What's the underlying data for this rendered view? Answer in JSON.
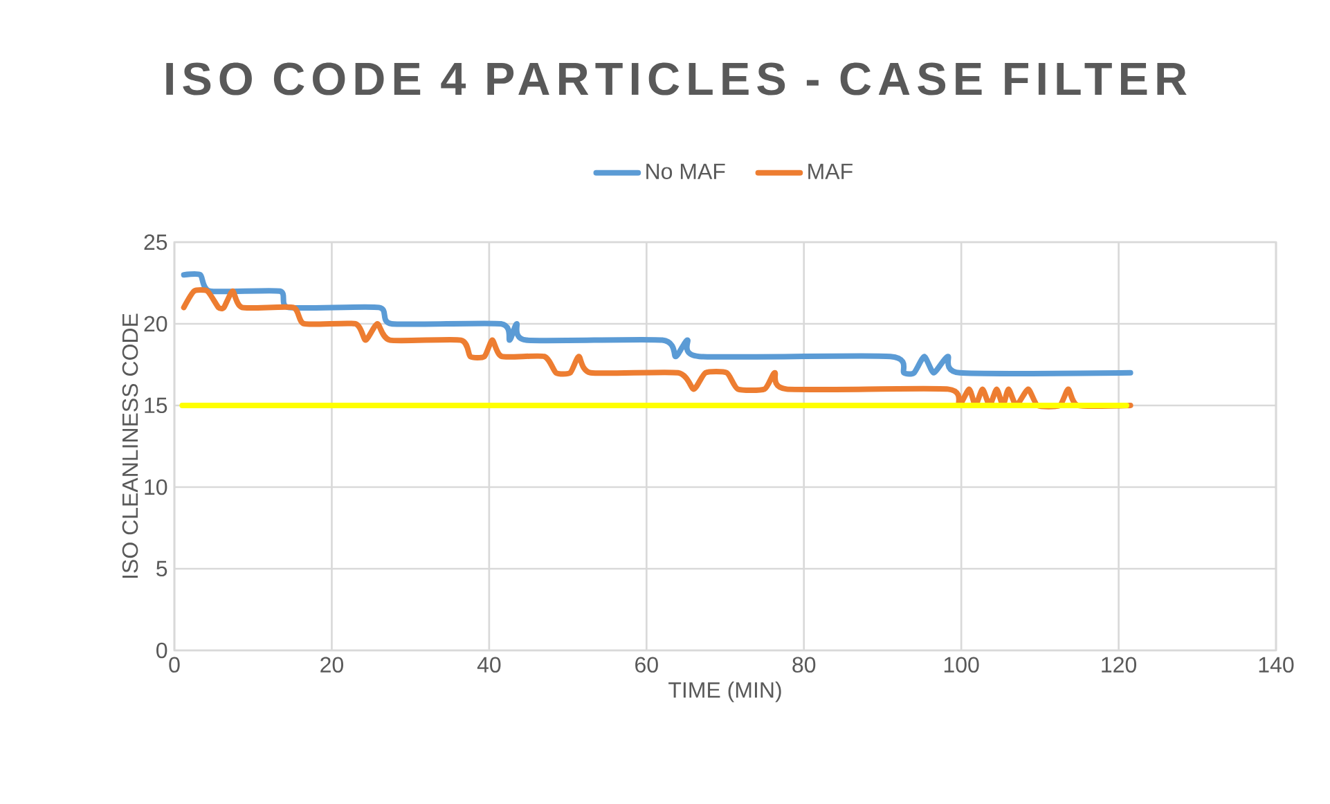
{
  "chart_data": {
    "type": "line",
    "title": "ISO CODE 4 PARTICLES - CASE FILTER",
    "xlabel": "TIME (MIN)",
    "ylabel": "ISO CLEANLINESS CODE",
    "xlim": [
      0,
      140
    ],
    "xticks": [
      0,
      20,
      40,
      60,
      80,
      100,
      120,
      140
    ],
    "ylim": [
      0,
      25
    ],
    "yticks": [
      0,
      5,
      10,
      15,
      20,
      25
    ],
    "grid": true,
    "legend": "top",
    "marker": "none",
    "line_style": "solid",
    "series": [
      {
        "name": "No MAF",
        "color": "#5b9bd5",
        "x": [
          1.2,
          3.3,
          4.5,
          13.4,
          14.5,
          26,
          27.6,
          41.5,
          42.6,
          43.5,
          44.7,
          62,
          63.7,
          65.2,
          66.7,
          91,
          92.7,
          94,
          95.3,
          96.5,
          98.3,
          99.8,
          121.5
        ],
        "values": [
          23,
          23,
          22,
          22,
          21,
          21,
          20,
          20,
          19,
          20,
          19,
          19,
          18,
          19,
          18,
          18,
          17,
          17,
          18,
          17,
          18,
          17,
          17
        ]
      },
      {
        "name": "MAF",
        "color": "#ed7d31",
        "x": [
          1.2,
          2.5,
          4.2,
          5.6,
          6.3,
          7.4,
          8.6,
          15.1,
          16.5,
          23,
          24.3,
          25.8,
          27.4,
          36.4,
          37.6,
          39.4,
          40.4,
          41.6,
          47,
          48.5,
          50.3,
          51.4,
          52.9,
          64,
          66,
          67.5,
          70.2,
          71.6,
          75,
          76.3,
          77.8,
          98.3,
          99.7,
          101,
          101.8,
          102.7,
          103.6,
          104.5,
          105.3,
          106,
          107,
          108.5,
          109.7,
          112.5,
          113.6,
          114.8,
          121.5
        ],
        "values": [
          21,
          22,
          22,
          21,
          21,
          22,
          21,
          21,
          20,
          20,
          19,
          20,
          19,
          19,
          18,
          18,
          19,
          18,
          18,
          17,
          17,
          18,
          17,
          17,
          16,
          17,
          17,
          16,
          16,
          17,
          16,
          16,
          15,
          16,
          15,
          16,
          15,
          16,
          15,
          16,
          15,
          16,
          15,
          15,
          16,
          15,
          15
        ]
      },
      {
        "color": "#ffff00",
        "x": [
          1,
          121
        ],
        "values": [
          15,
          15
        ]
      }
    ]
  }
}
